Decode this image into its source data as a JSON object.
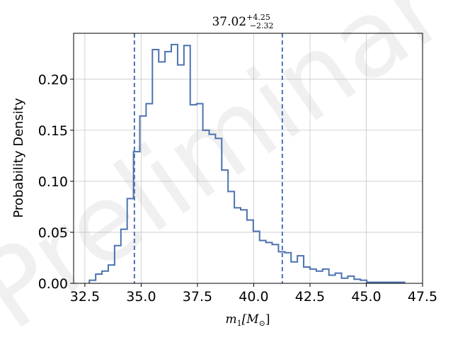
{
  "chart_data": {
    "type": "histogram",
    "title": "37.02",
    "title_superscript": "+4.25",
    "title_subscript": "−2.32",
    "xlabel": "m",
    "xlabel_subscript": "1",
    "xlabel_unit": "[M",
    "xlabel_unit_subscript": "⊙",
    "xlabel_unit_close": "]",
    "ylabel": "Probability Density",
    "xlim": [
      32.0,
      47.5
    ],
    "ylim": [
      0.0,
      0.245
    ],
    "grid": true,
    "watermark": "Preliminary",
    "color": "#4c72b0",
    "x_ticks": [
      32.5,
      35.0,
      37.5,
      40.0,
      42.5,
      45.0,
      47.5
    ],
    "x_tick_labels": [
      "32.5",
      "35.0",
      "37.5",
      "40.0",
      "42.5",
      "45.0",
      "47.5"
    ],
    "y_ticks": [
      0.0,
      0.05,
      0.1,
      0.15,
      0.2
    ],
    "y_tick_labels": [
      "0.00",
      "0.05",
      "0.10",
      "0.15",
      "0.20"
    ],
    "vertical_lines": [
      34.7,
      41.27
    ],
    "bin_edges": [
      32.7,
      32.98,
      33.26,
      33.54,
      33.82,
      34.1,
      34.38,
      34.66,
      34.94,
      35.22,
      35.5,
      35.78,
      36.06,
      36.34,
      36.62,
      36.9,
      37.18,
      37.46,
      37.74,
      38.02,
      38.3,
      38.58,
      38.86,
      39.14,
      39.42,
      39.7,
      39.98,
      40.26,
      40.54,
      40.82,
      41.1,
      41.38,
      41.66,
      41.94,
      42.22,
      42.5,
      42.78,
      43.06,
      43.34,
      43.62,
      43.9,
      44.18,
      44.46,
      44.74,
      45.02,
      45.3,
      45.58,
      45.86,
      46.14,
      46.42,
      46.7
    ],
    "values": [
      0.003,
      0.009,
      0.012,
      0.018,
      0.037,
      0.053,
      0.083,
      0.129,
      0.164,
      0.176,
      0.229,
      0.217,
      0.227,
      0.234,
      0.214,
      0.233,
      0.175,
      0.176,
      0.15,
      0.146,
      0.142,
      0.111,
      0.09,
      0.074,
      0.072,
      0.062,
      0.051,
      0.042,
      0.04,
      0.038,
      0.031,
      0.03,
      0.021,
      0.027,
      0.016,
      0.014,
      0.012,
      0.014,
      0.008,
      0.01,
      0.005,
      0.007,
      0.004,
      0.003,
      0.001,
      0.001,
      0.001,
      0.001,
      0.001,
      0.001
    ]
  }
}
